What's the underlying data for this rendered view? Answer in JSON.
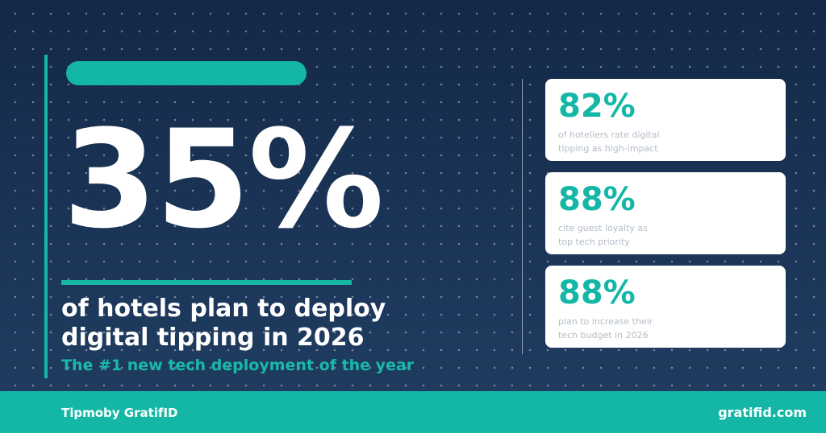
{
  "hero": {
    "stat": "35%",
    "headline_line1": "of hotels plan to deploy",
    "headline_line2": "digital tipping in 2026",
    "subhead": "The #1 new tech deployment of the year"
  },
  "cards": [
    {
      "value": "82%",
      "desc_line1": "of hoteliers rate digital",
      "desc_line2": "tipping as high-impact"
    },
    {
      "value": "88%",
      "desc_line1": "cite guest loyalty as",
      "desc_line2": "top tech priority"
    },
    {
      "value": "88%",
      "desc_line1": "plan to increase their",
      "desc_line2": "tech budget in 2026"
    }
  ],
  "footer": {
    "brand": "Tipmoby GratifID",
    "site": "gratifid.com"
  },
  "colors": {
    "accent": "#14b7a6",
    "background": "#1b3558",
    "card": "#ffffff",
    "text": "#ffffff"
  }
}
